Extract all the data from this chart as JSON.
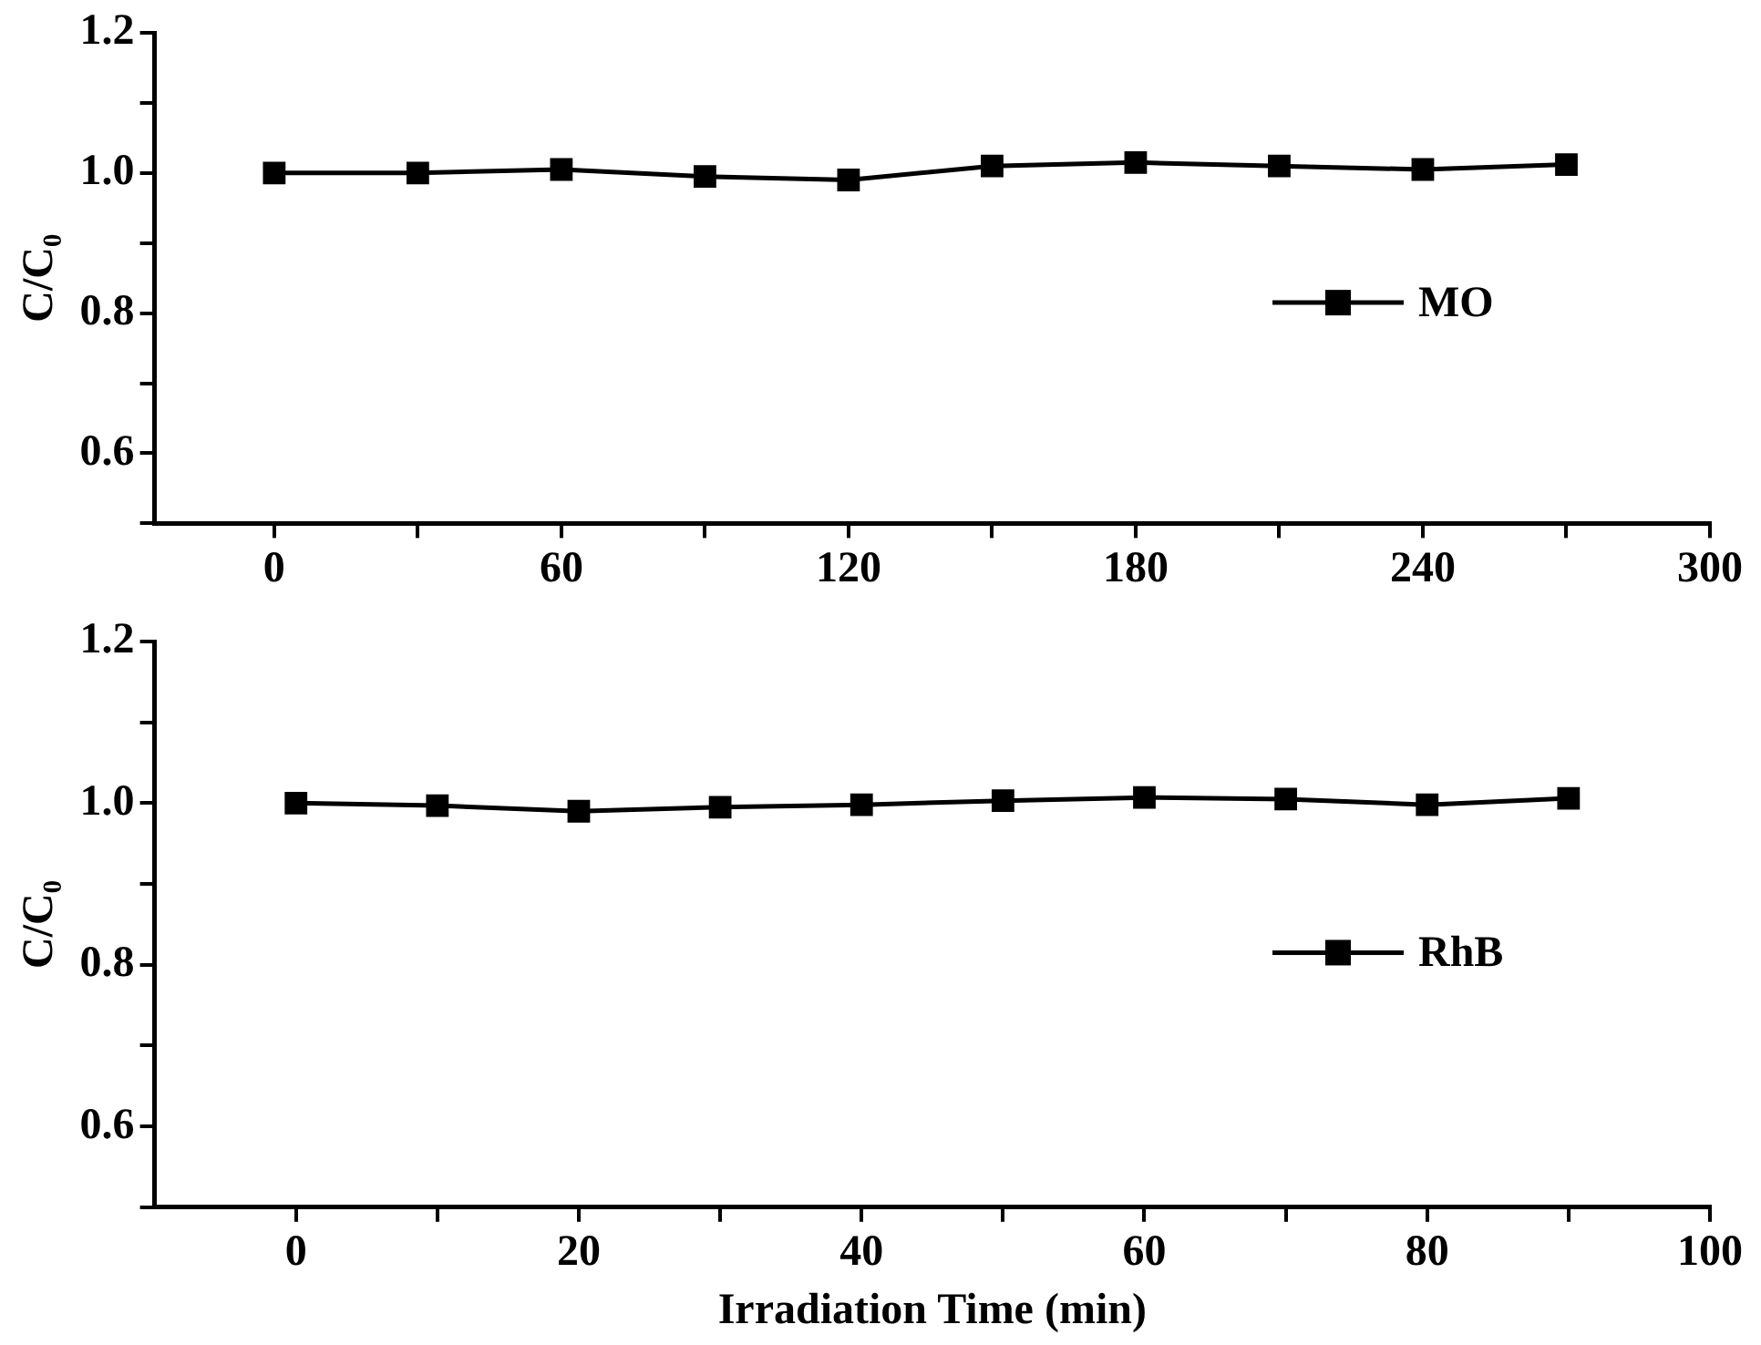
{
  "chart_data": [
    {
      "type": "line",
      "ylabel": "C/C₀",
      "x": [
        0,
        30,
        60,
        90,
        120,
        150,
        180,
        210,
        240,
        270
      ],
      "series": [
        {
          "name": "MO",
          "color": "#000000",
          "values": [
            1.0,
            1.0,
            1.005,
            0.995,
            0.99,
            1.01,
            1.015,
            1.01,
            1.005,
            1.012
          ]
        }
      ],
      "xlim": [
        -25,
        300
      ],
      "xticks": [
        0,
        {
          "value": 30,
          "label": null
        },
        60,
        {
          "value": 90,
          "label": null
        },
        120,
        {
          "value": 150,
          "label": null
        },
        180,
        {
          "value": 210,
          "label": null
        },
        240,
        {
          "value": 270,
          "label": null
        },
        300
      ],
      "ylim": [
        0.5,
        1.2
      ],
      "yticks": [
        {
          "value": 0.5,
          "label": null
        },
        0.6,
        {
          "value": 0.7,
          "label": null
        },
        0.8,
        {
          "value": 0.9,
          "label": null
        },
        {
          "value": 1.0,
          "label": "1.0"
        },
        {
          "value": 1.1,
          "label": null
        },
        1.2
      ],
      "grid": false,
      "legend": "right",
      "marker": "square",
      "line_style": "solid"
    },
    {
      "type": "line",
      "xlabel": "Irradiation Time (min)",
      "ylabel": "C/C₀",
      "x": [
        0,
        10,
        20,
        30,
        40,
        50,
        60,
        70,
        80,
        90
      ],
      "series": [
        {
          "name": "RhB",
          "color": "#000000",
          "values": [
            1.0,
            0.997,
            0.99,
            0.995,
            0.998,
            1.003,
            1.007,
            1.005,
            0.998,
            1.006
          ]
        }
      ],
      "xlim": [
        -10,
        100
      ],
      "xticks": [
        0,
        {
          "value": 10,
          "label": null
        },
        20,
        {
          "value": 30,
          "label": null
        },
        40,
        {
          "value": 50,
          "label": null
        },
        60,
        {
          "value": 70,
          "label": null
        },
        80,
        {
          "value": 90,
          "label": null
        },
        100
      ],
      "ylim": [
        0.5,
        1.2
      ],
      "yticks": [
        {
          "value": 0.5,
          "label": null
        },
        0.6,
        {
          "value": 0.7,
          "label": null
        },
        0.8,
        {
          "value": 0.9,
          "label": null
        },
        {
          "value": 1.0,
          "label": "1.0"
        },
        {
          "value": 1.1,
          "label": null
        },
        1.2
      ],
      "grid": false,
      "legend": "right",
      "marker": "square",
      "line_style": "solid"
    }
  ]
}
